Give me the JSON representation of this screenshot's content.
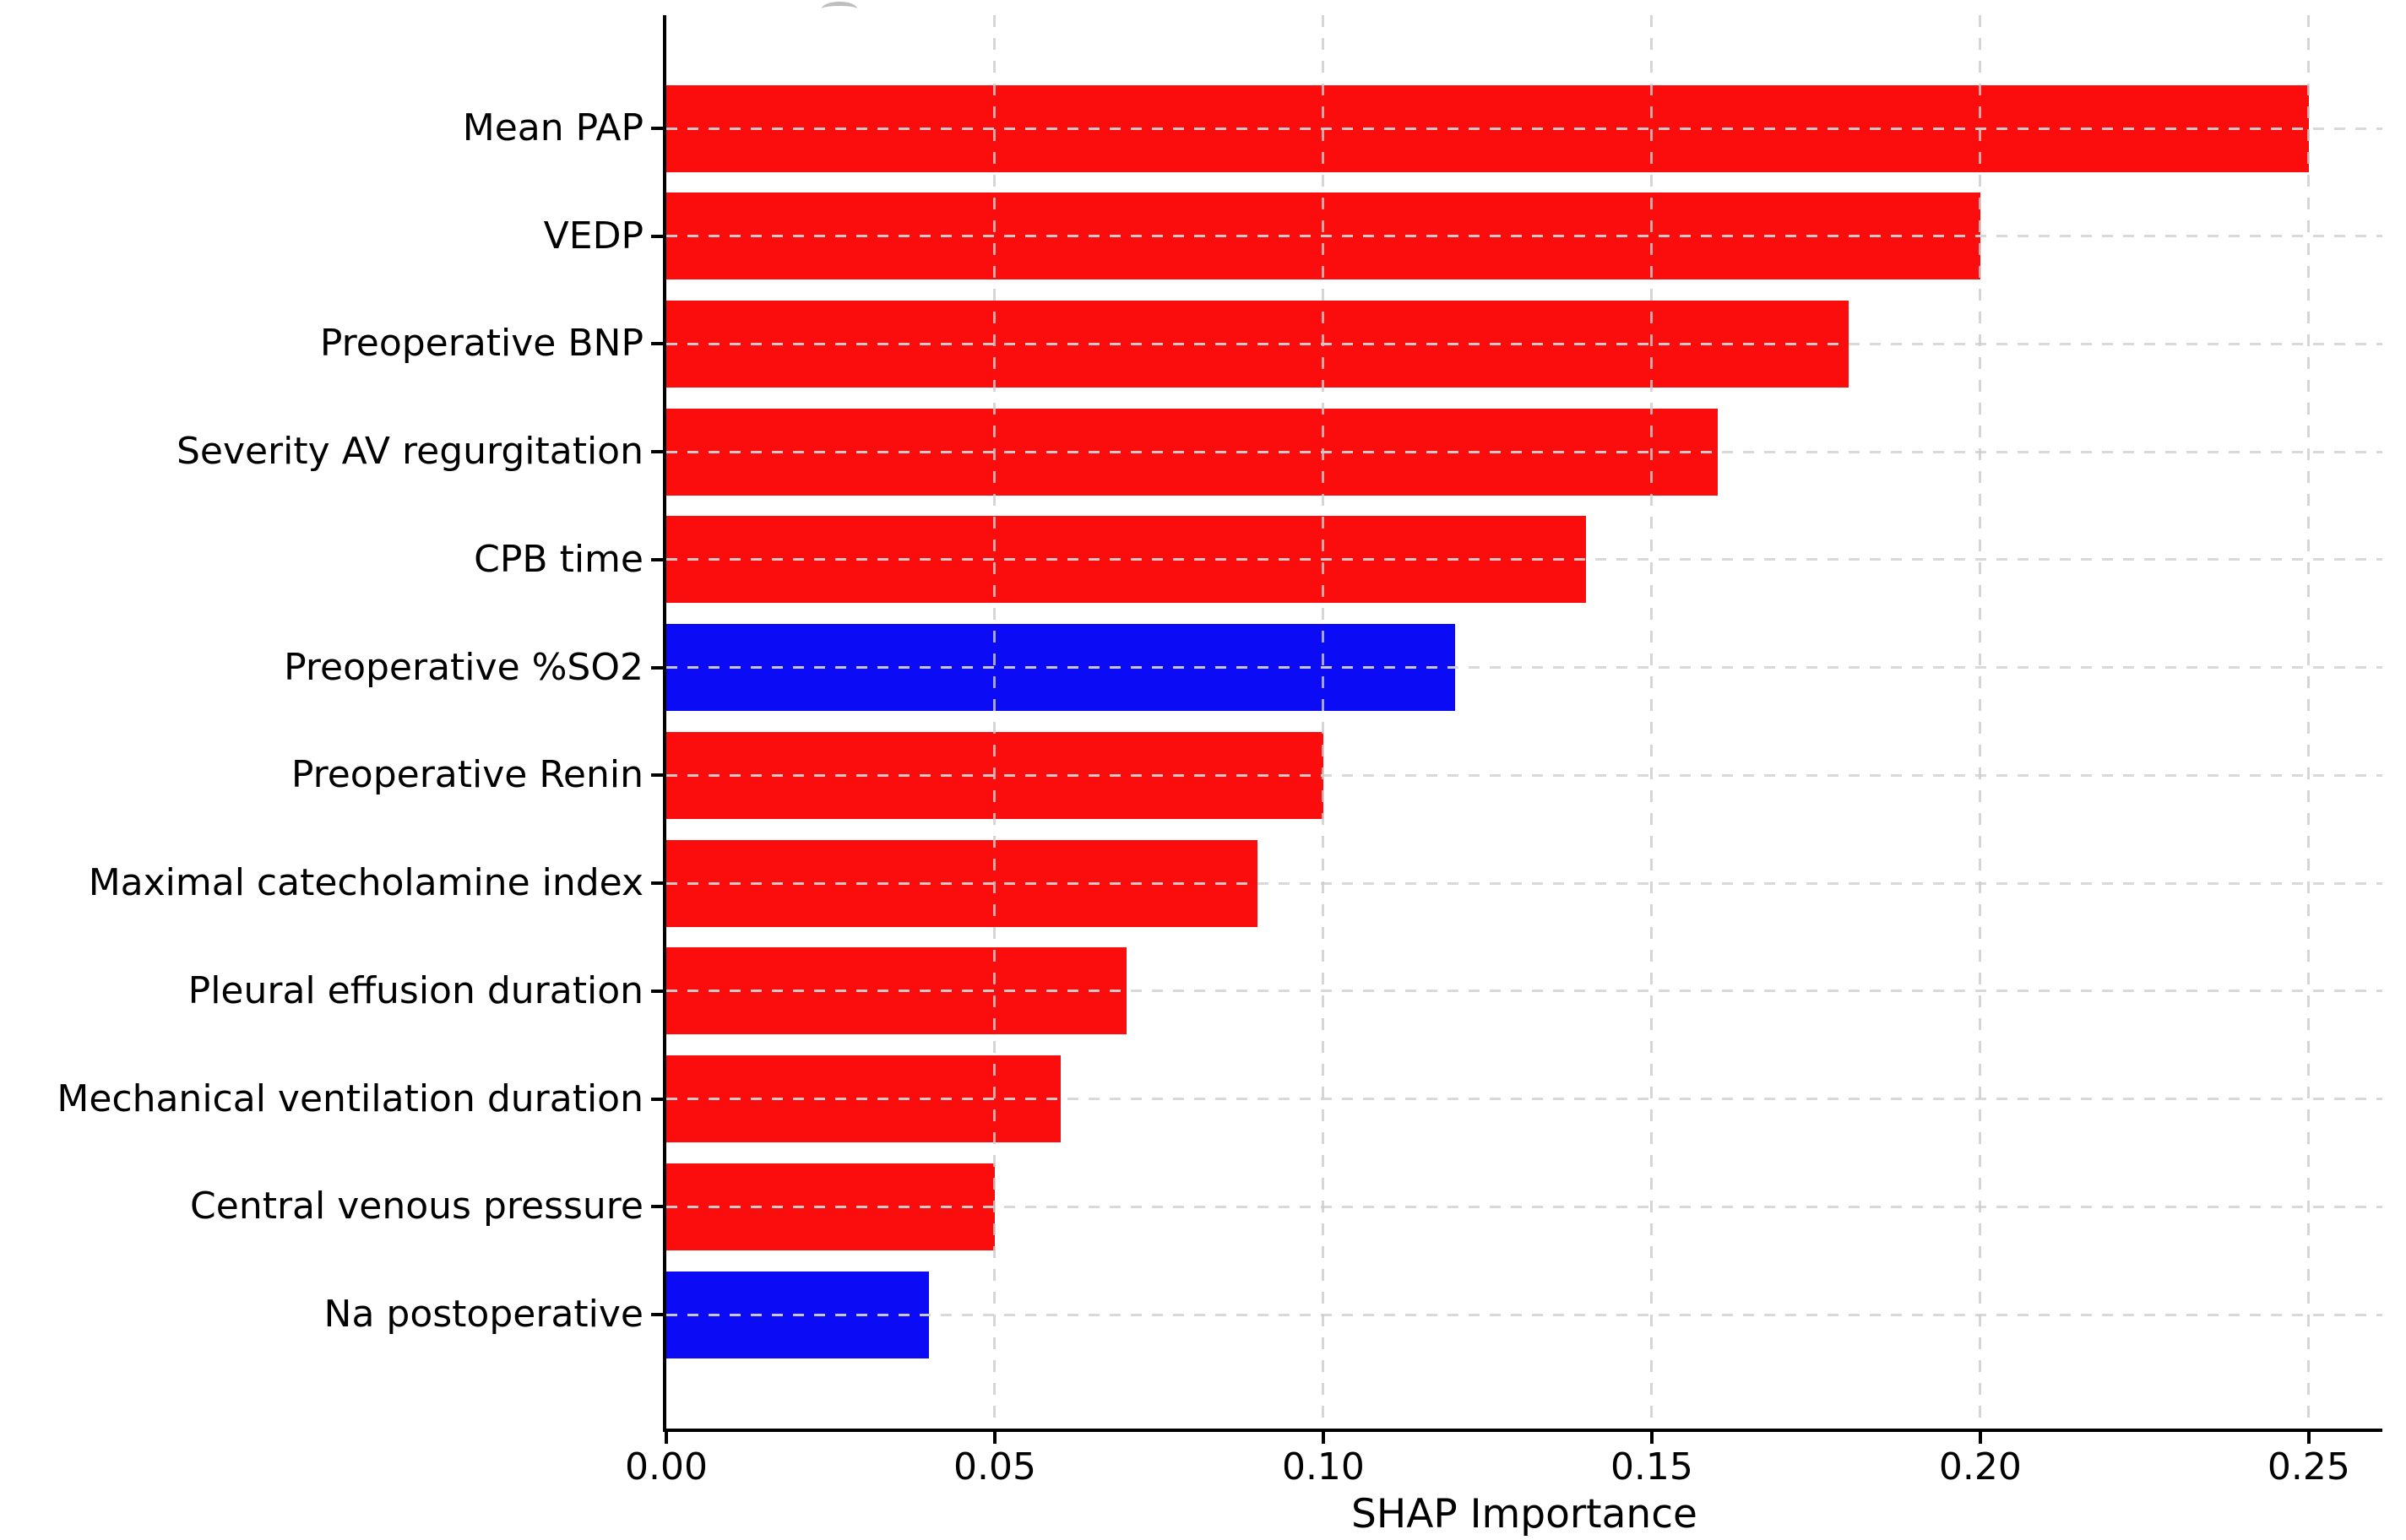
{
  "chart_data": {
    "type": "bar",
    "orientation": "horizontal",
    "title": "",
    "xlabel": "SHAP Importance",
    "ylabel": "",
    "categories": [
      "Mean PAP",
      "VEDP",
      "Preoperative BNP",
      "Severity AV regurgitation",
      "CPB time",
      "Preoperative %SO2",
      "Preoperative Renin",
      "Maximal catecholamine index",
      "Pleural effusion duration",
      "Mechanical ventilation duration",
      "Central venous pressure",
      "Na postoperative"
    ],
    "values": [
      0.25,
      0.2,
      0.18,
      0.16,
      0.14,
      0.12,
      0.1,
      0.09,
      0.07,
      0.06,
      0.05,
      0.04
    ],
    "bar_colors": [
      "#fb0d0d",
      "#fb0d0d",
      "#fb0d0d",
      "#fb0d0d",
      "#fb0d0d",
      "#0b0bf5",
      "#fb0d0d",
      "#fb0d0d",
      "#fb0d0d",
      "#fb0d0d",
      "#fb0d0d",
      "#0b0bf5"
    ],
    "x_ticks": [
      {
        "value": 0.0,
        "label": "0.00"
      },
      {
        "value": 0.05,
        "label": "0.05"
      },
      {
        "value": 0.1,
        "label": "0.10"
      },
      {
        "value": 0.15,
        "label": "0.15"
      },
      {
        "value": 0.2,
        "label": "0.20"
      },
      {
        "value": 0.25,
        "label": "0.25"
      }
    ],
    "xlim": [
      0,
      0.2612
    ],
    "grid": {
      "style": "dashed",
      "axes": "both",
      "color": "#d6d6d6",
      "drawn_over_bars": true
    },
    "legend": "none",
    "colors": {
      "bar_red": "#fb0d0d",
      "bar_blue": "#0b0bf5",
      "axis": "#000000",
      "text": "#000000",
      "background": "#ffffff"
    }
  }
}
